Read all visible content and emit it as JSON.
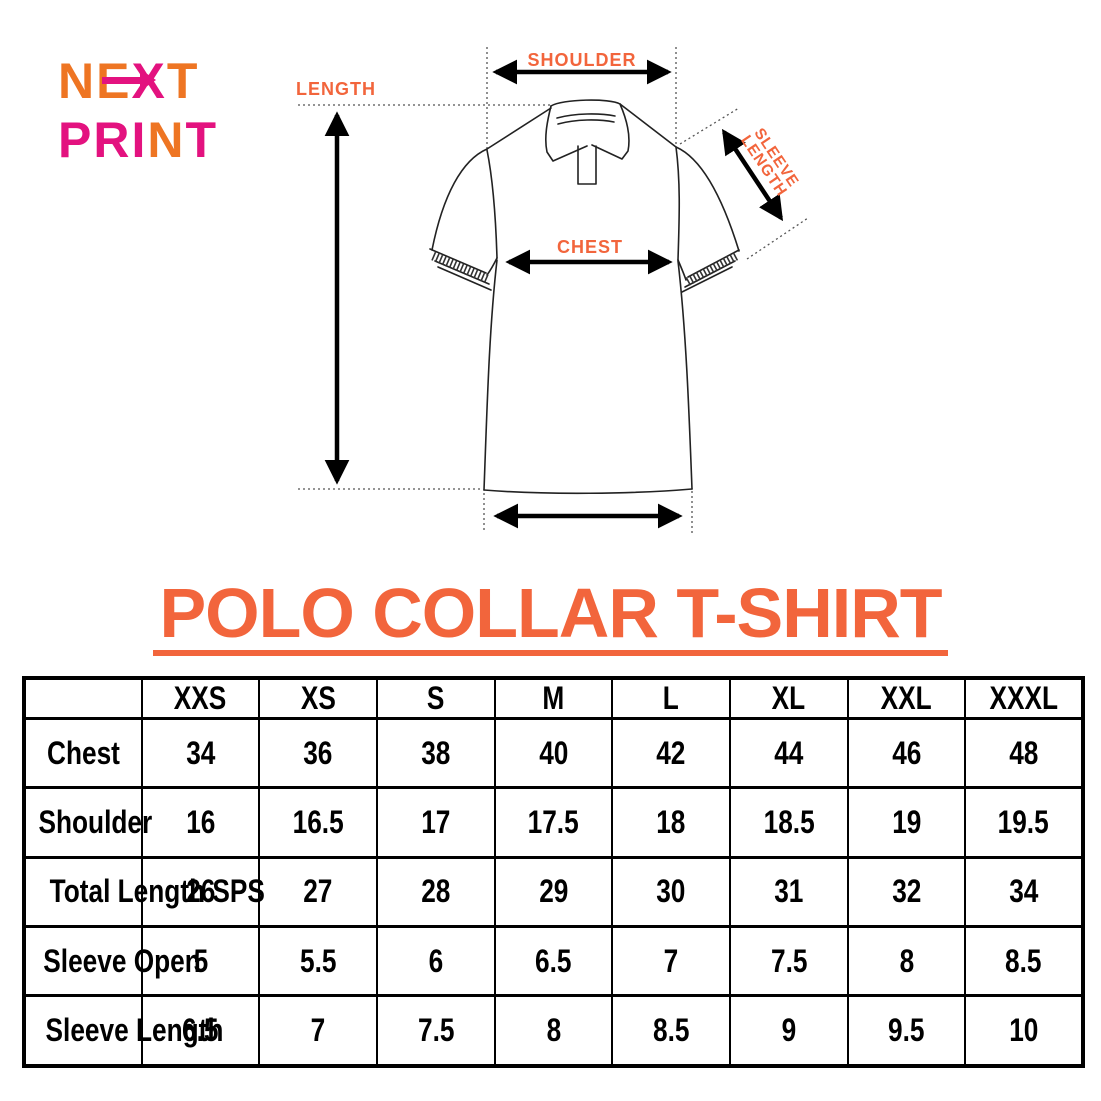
{
  "brand": {
    "line1": "NEXT",
    "line1_colors": [
      "#EE7523",
      "#EE7523",
      "#E3127F",
      "#EE7523"
    ],
    "line2": "PRINT",
    "line2_colors": [
      "#E3127F",
      "#E3127F",
      "#E3127F",
      "#EE7523",
      "#E3127F"
    ],
    "orange": "#EE7523",
    "pink": "#E3127F"
  },
  "diagram": {
    "label_color": "#F2653C",
    "labels": {
      "length": "LENGTH",
      "shoulder": "SHOULDER",
      "chest": "CHEST",
      "sleeve_line1": "SLEEVE",
      "sleeve_line2": "LENGTH"
    }
  },
  "title": {
    "text": "POLO COLLAR T-SHIRT",
    "color": "#F2653C"
  },
  "chart_data": {
    "type": "table",
    "title": "POLO COLLAR T-SHIRT",
    "columns": [
      "",
      "XXS",
      "XS",
      "S",
      "M",
      "L",
      "XL",
      "XXL",
      "XXXL"
    ],
    "rows": [
      {
        "label": "Chest",
        "values": [
          34,
          36,
          38,
          40,
          42,
          44,
          46,
          48
        ]
      },
      {
        "label": "Shoulder",
        "values": [
          16,
          16.5,
          17,
          17.5,
          18,
          18.5,
          19,
          19.5
        ]
      },
      {
        "label": "Total Length SPS",
        "values": [
          26,
          27,
          28,
          29,
          30,
          31,
          32,
          34
        ]
      },
      {
        "label": "Sleeve Open",
        "values": [
          5,
          5.5,
          6,
          6.5,
          7,
          7.5,
          8,
          8.5
        ]
      },
      {
        "label": "Sleeve Length",
        "values": [
          6.5,
          7,
          7.5,
          8,
          8.5,
          9,
          9.5,
          10
        ]
      }
    ]
  }
}
